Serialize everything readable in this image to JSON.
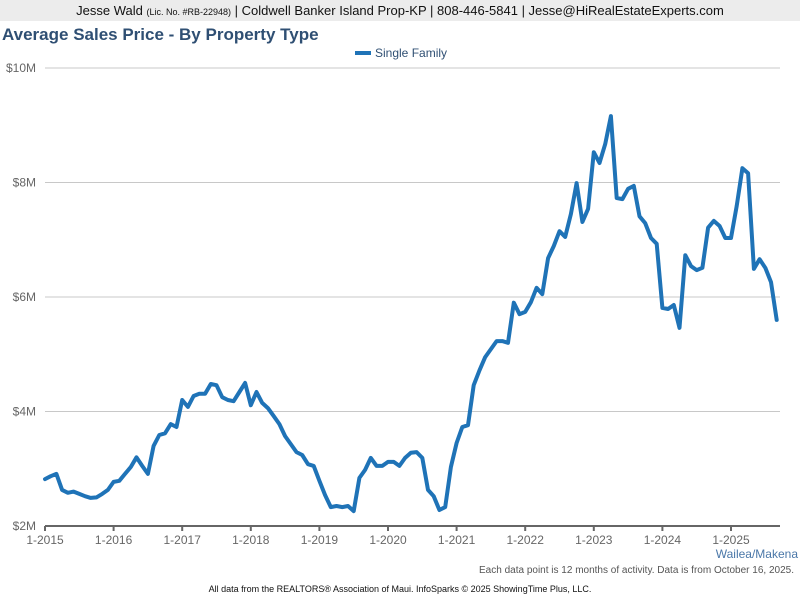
{
  "header": {
    "agent": "Jesse Wald",
    "license": "(Lic. No. #RB-22948)",
    "rest": "| Coldwell Banker Island Prop-KP | 808-446-5841 | Jesse@HiRealEstateExperts.com"
  },
  "area_label": "Wailea/Makena",
  "note": "Each data point is 12 months of activity. Data is from October 16, 2025.",
  "footer": "All data from the REALTORS® Association of Maui. InfoSparks © 2025 ShowingTime Plus, LLC.",
  "chart_data": {
    "type": "line",
    "title": "Average Sales Price - By Property Type",
    "xlabel": "",
    "ylabel": "",
    "ylim": [
      2,
      10
    ],
    "y_unit": "millions USD",
    "yticks": [
      {
        "v": 2,
        "label": "$2M"
      },
      {
        "v": 4,
        "label": "$4M"
      },
      {
        "v": 6,
        "label": "$6M"
      },
      {
        "v": 8,
        "label": "$8M"
      },
      {
        "v": 10,
        "label": "$10M"
      }
    ],
    "xticks": [
      "1-2015",
      "1-2016",
      "1-2017",
      "1-2018",
      "1-2019",
      "1-2020",
      "1-2021",
      "1-2022",
      "1-2023",
      "1-2024",
      "1-2025"
    ],
    "x_start": "1-2015",
    "x_step": "month",
    "grid": true,
    "legend_position": "top-center",
    "colors": {
      "series": "#1f73b7",
      "grid": "#c8c8c8",
      "axis": "#666666"
    },
    "series": [
      {
        "name": "Single Family",
        "values": [
          2.82,
          2.87,
          2.91,
          2.63,
          2.58,
          2.6,
          2.56,
          2.52,
          2.49,
          2.5,
          2.56,
          2.63,
          2.77,
          2.79,
          2.91,
          3.03,
          3.2,
          3.05,
          2.91,
          3.4,
          3.59,
          3.62,
          3.78,
          3.73,
          4.2,
          4.08,
          4.27,
          4.31,
          4.31,
          4.48,
          4.46,
          4.25,
          4.2,
          4.18,
          4.34,
          4.5,
          4.11,
          4.34,
          4.15,
          4.06,
          3.92,
          3.78,
          3.57,
          3.43,
          3.29,
          3.24,
          3.08,
          3.05,
          2.79,
          2.54,
          2.33,
          2.35,
          2.33,
          2.35,
          2.26,
          2.84,
          2.98,
          3.19,
          3.05,
          3.05,
          3.12,
          3.12,
          3.05,
          3.19,
          3.28,
          3.29,
          3.19,
          2.63,
          2.52,
          2.28,
          2.33,
          3.03,
          3.45,
          3.73,
          3.76,
          4.46,
          4.72,
          4.95,
          5.09,
          5.23,
          5.23,
          5.2,
          5.9,
          5.7,
          5.74,
          5.91,
          6.16,
          6.05,
          6.68,
          6.89,
          7.15,
          7.05,
          7.45,
          7.99,
          7.31,
          7.54,
          8.53,
          8.34,
          8.67,
          9.16,
          7.73,
          7.71,
          7.89,
          7.94,
          7.41,
          7.29,
          7.03,
          6.93,
          5.81,
          5.79,
          5.86,
          5.46,
          6.73,
          6.54,
          6.47,
          6.51,
          7.21,
          7.33,
          7.24,
          7.03,
          7.03,
          7.59,
          8.25,
          8.16,
          6.49,
          6.66,
          6.51,
          6.26,
          5.6
        ]
      }
    ]
  }
}
